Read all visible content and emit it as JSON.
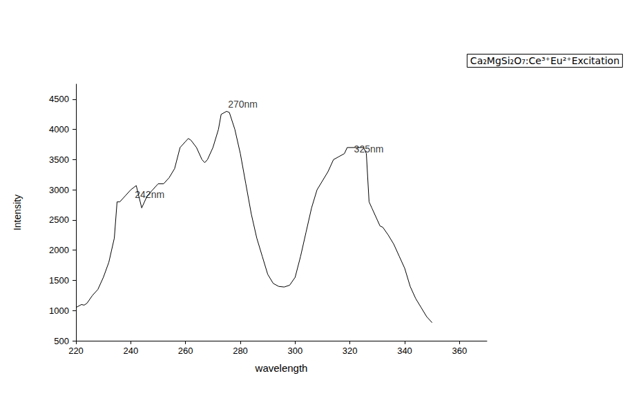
{
  "chart_data": {
    "type": "line",
    "title": "Ca₂MgSi₂O₇:Ce³⁺Eu²⁺Excitation",
    "x_label": "wavelength",
    "y_label": "Intensity",
    "color": "#000000",
    "grid": false,
    "xlim": [
      220,
      370
    ],
    "xticks": [
      220,
      240,
      260,
      280,
      300,
      320,
      340,
      360
    ],
    "ylim": [
      500,
      4750
    ],
    "yticks": [
      500,
      1000,
      1500,
      2000,
      2500,
      3000,
      3500,
      4000,
      4500
    ],
    "x": [
      220,
      222,
      223,
      224,
      226,
      228,
      230,
      232,
      234,
      235,
      236,
      238,
      240,
      242,
      244,
      246,
      248,
      250,
      252,
      254,
      256,
      258,
      260,
      261,
      262,
      264,
      266,
      267,
      268,
      270,
      272,
      273,
      275,
      276,
      278,
      280,
      282,
      284,
      286,
      288,
      290,
      292,
      294,
      296,
      298,
      300,
      302,
      304,
      306,
      308,
      310,
      312,
      314,
      316,
      318,
      319,
      322,
      325,
      326,
      327,
      328,
      330,
      331,
      332,
      334,
      336,
      338,
      340,
      342,
      344,
      346,
      348,
      350
    ],
    "values": [
      1050,
      1100,
      1090,
      1120,
      1250,
      1350,
      1550,
      1800,
      2200,
      2800,
      2800,
      2900,
      3000,
      3070,
      2700,
      2900,
      3000,
      3100,
      3100,
      3200,
      3350,
      3700,
      3800,
      3850,
      3820,
      3700,
      3500,
      3450,
      3500,
      3700,
      4000,
      4250,
      4300,
      4280,
      4000,
      3600,
      3100,
      2600,
      2200,
      1900,
      1600,
      1450,
      1400,
      1390,
      1420,
      1550,
      1900,
      2300,
      2700,
      3000,
      3150,
      3300,
      3500,
      3550,
      3600,
      3700,
      3700,
      3700,
      3600,
      2800,
      2700,
      2500,
      2400,
      2380,
      2250,
      2100,
      1900,
      1700,
      1400,
      1200,
      1050,
      900,
      800
    ],
    "annotations": [
      {
        "text": "270nm",
        "x": 275.5,
        "y": 4420
      },
      {
        "text": "242nm",
        "x": 241.5,
        "y": 2920
      },
      {
        "text": "325nm",
        "x": 321.5,
        "y": 3680
      }
    ]
  }
}
